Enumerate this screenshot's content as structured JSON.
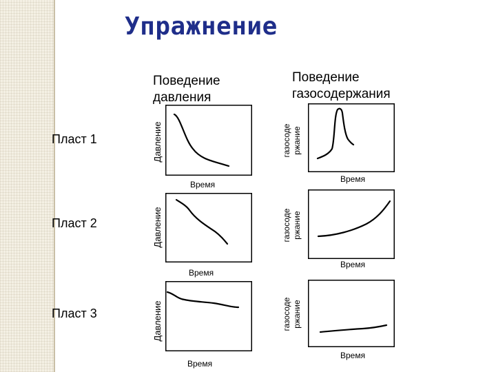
{
  "title": "Упражнение",
  "columns": {
    "pressure": [
      "Поведение",
      "давления"
    ],
    "gas": [
      "Поведение",
      "газосодержания"
    ]
  },
  "rows": [
    "Пласт 1",
    "Пласт 2",
    "Пласт 3"
  ],
  "axes": {
    "pressure_y": "Давление",
    "gas_y": [
      "газосоде",
      "ржание"
    ],
    "x": "Время"
  },
  "colors": {
    "title": "#1f2e8a",
    "line": "#000000"
  },
  "curves": {
    "pressure_1": "decreasing, steep then flattening",
    "pressure_2": "decreasing steadily",
    "pressure_3": "nearly constant, slight decline",
    "gas_1": "sharp peak",
    "gas_2": "increasing, accelerating",
    "gas_3": "nearly constant, slight rise"
  }
}
